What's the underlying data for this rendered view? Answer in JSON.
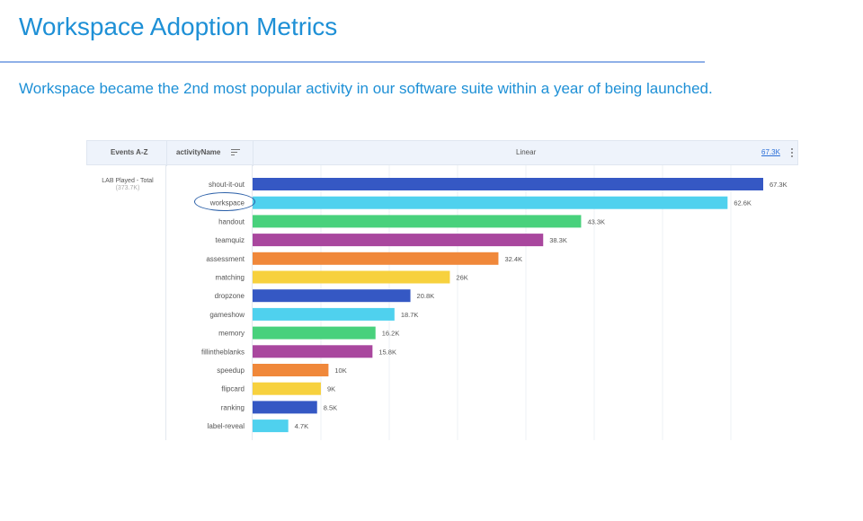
{
  "page": {
    "title": "Workspace Adoption Metrics",
    "subtitle": "Workspace became the 2nd most popular activity in our software suite within a year of being launched."
  },
  "table_header": {
    "events_label": "Events  A-Z",
    "activity_label": "activityName",
    "scale_label": "Linear",
    "max_label": "67.3K"
  },
  "group": {
    "name": "LAB Played - Total",
    "total": "(373.7K)"
  },
  "icons": [
    "sort-icon",
    "more-vert-icon"
  ],
  "chart_data": {
    "type": "bar",
    "orientation": "horizontal",
    "categories": [
      "shout-it-out",
      "workspace",
      "handout",
      "teamquiz",
      "assessment",
      "matching",
      "dropzone",
      "gameshow",
      "memory",
      "fillintheblanks",
      "speedup",
      "flipcard",
      "ranking",
      "label-reveal"
    ],
    "values": [
      67300,
      62600,
      43300,
      38300,
      32400,
      26000,
      20800,
      18700,
      16200,
      15800,
      10000,
      9000,
      8500,
      4700
    ],
    "value_labels": [
      "67.3K",
      "62.6K",
      "43.3K",
      "38.3K",
      "32.4K",
      "26K",
      "20.8K",
      "18.7K",
      "16.2K",
      "15.8K",
      "10K",
      "9K",
      "8.5K",
      "4.7K"
    ],
    "colors": [
      "#3558c4",
      "#4fd1ee",
      "#48d17c",
      "#a9479e",
      "#f0883a",
      "#f7d13e",
      "#3558c4",
      "#4fd1ee",
      "#48d17c",
      "#a9479e",
      "#f0883a",
      "#f7d13e",
      "#3558c4",
      "#4fd1ee"
    ],
    "xlim": [
      0,
      67300
    ],
    "highlight": "workspace",
    "grid": true
  }
}
